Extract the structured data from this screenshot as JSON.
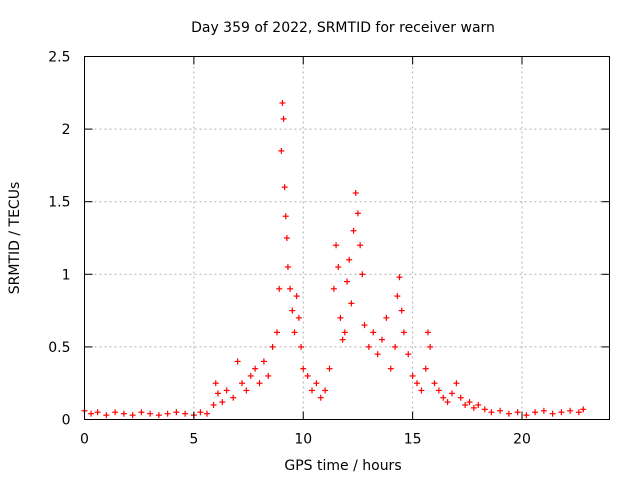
{
  "chart_data": {
    "type": "scatter",
    "title": "Day 359 of 2022, SRMTID for receiver warn",
    "xlabel": "GPS time / hours",
    "ylabel": "SRMTID / TECUs",
    "xlim": [
      0,
      24
    ],
    "ylim": [
      0,
      2.5
    ],
    "xticks": [
      0,
      5,
      10,
      15,
      20
    ],
    "xtick_labels": [
      "0",
      "5",
      "10",
      "15",
      "20"
    ],
    "yticks": [
      0,
      0.5,
      1,
      1.5,
      2,
      2.5
    ],
    "ytick_labels": [
      "0",
      "0.5",
      "1",
      "1.5",
      "2",
      "2.5"
    ],
    "grid": true,
    "marker": "+",
    "color": "#ff0000",
    "series": [
      {
        "name": "SRMTID",
        "x": [
          0.0,
          0.3,
          0.6,
          1.0,
          1.4,
          1.8,
          2.2,
          2.6,
          3.0,
          3.4,
          3.8,
          4.2,
          4.6,
          5.0,
          5.3,
          5.6,
          5.9,
          6.0,
          6.1,
          6.3,
          6.5,
          6.8,
          7.0,
          7.2,
          7.4,
          7.6,
          7.8,
          8.0,
          8.2,
          8.4,
          8.6,
          8.8,
          8.9,
          9.0,
          9.05,
          9.1,
          9.15,
          9.2,
          9.25,
          9.3,
          9.4,
          9.5,
          9.6,
          9.7,
          9.8,
          9.9,
          10.0,
          10.2,
          10.4,
          10.6,
          10.8,
          11.0,
          11.2,
          11.4,
          11.5,
          11.6,
          11.7,
          11.8,
          11.9,
          12.0,
          12.1,
          12.2,
          12.3,
          12.4,
          12.5,
          12.6,
          12.7,
          12.8,
          13.0,
          13.2,
          13.4,
          13.6,
          13.8,
          14.0,
          14.2,
          14.3,
          14.4,
          14.5,
          14.6,
          14.8,
          15.0,
          15.2,
          15.4,
          15.6,
          15.7,
          15.8,
          16.0,
          16.2,
          16.4,
          16.6,
          16.8,
          17.0,
          17.2,
          17.4,
          17.6,
          17.8,
          18.0,
          18.3,
          18.6,
          19.0,
          19.4,
          19.8,
          20.2,
          20.6,
          21.0,
          21.4,
          21.8,
          22.2,
          22.6,
          22.8
        ],
        "y": [
          0.06,
          0.04,
          0.05,
          0.03,
          0.05,
          0.04,
          0.03,
          0.05,
          0.04,
          0.03,
          0.04,
          0.05,
          0.04,
          0.03,
          0.05,
          0.04,
          0.1,
          0.25,
          0.18,
          0.12,
          0.2,
          0.15,
          0.4,
          0.25,
          0.2,
          0.3,
          0.35,
          0.25,
          0.4,
          0.3,
          0.5,
          0.6,
          0.9,
          1.85,
          2.18,
          2.07,
          1.6,
          1.4,
          1.25,
          1.05,
          0.9,
          0.75,
          0.6,
          0.85,
          0.7,
          0.5,
          0.35,
          0.3,
          0.2,
          0.25,
          0.15,
          0.2,
          0.35,
          0.9,
          1.2,
          1.05,
          0.7,
          0.55,
          0.6,
          0.95,
          1.1,
          0.8,
          1.3,
          1.56,
          1.42,
          1.2,
          1.0,
          0.65,
          0.5,
          0.6,
          0.45,
          0.55,
          0.7,
          0.35,
          0.5,
          0.85,
          0.98,
          0.75,
          0.6,
          0.45,
          0.3,
          0.25,
          0.2,
          0.35,
          0.6,
          0.5,
          0.25,
          0.2,
          0.15,
          0.12,
          0.18,
          0.25,
          0.15,
          0.1,
          0.12,
          0.08,
          0.1,
          0.07,
          0.05,
          0.06,
          0.04,
          0.05,
          0.03,
          0.05,
          0.06,
          0.04,
          0.05,
          0.06,
          0.05,
          0.07
        ]
      }
    ]
  }
}
